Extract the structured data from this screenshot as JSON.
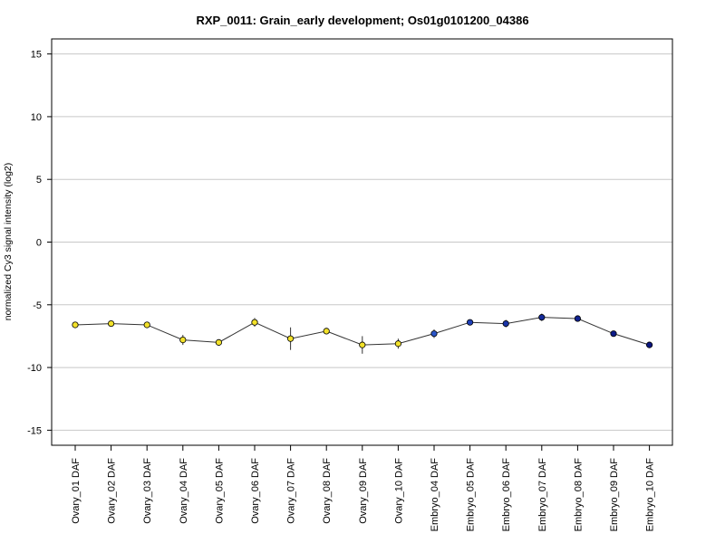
{
  "chart_data": {
    "type": "line",
    "title": "RXP_0011: Grain_early development; Os01g0101200_04386",
    "xlabel": "",
    "ylabel": "normalized Cy3 signal intensity (log2)",
    "ylim": [
      -16.2,
      16.2
    ],
    "yticks": [
      15,
      10,
      5,
      0,
      -5,
      -10,
      -15
    ],
    "grid": true,
    "legend": "none",
    "categories": [
      "Ovary_01 DAF",
      "Ovary_02 DAF",
      "Ovary_03 DAF",
      "Ovary_04 DAF",
      "Ovary_05 DAF",
      "Ovary_06 DAF",
      "Ovary_07 DAF",
      "Ovary_08 DAF",
      "Ovary_09 DAF",
      "Ovary_10 DAF",
      "Embryo_04 DAF",
      "Embryo_05 DAF",
      "Embryo_06 DAF",
      "Embryo_07 DAF",
      "Embryo_08 DAF",
      "Embryo_09 DAF",
      "Embryo_10 DAF"
    ],
    "values": [
      -6.6,
      -6.5,
      -6.6,
      -7.8,
      -8.0,
      -6.4,
      -7.7,
      -7.1,
      -8.2,
      -8.1,
      -7.3,
      -6.4,
      -6.5,
      -6.0,
      -6.1,
      -7.3,
      -8.2
    ],
    "error": [
      0.15,
      0.1,
      0.15,
      0.4,
      0.2,
      0.35,
      0.9,
      0.25,
      0.7,
      0.4,
      0.35,
      0.2,
      0.3,
      0.3,
      0.15,
      0.15,
      0.15
    ],
    "point_colors": [
      "#f2e12a",
      "#f2e12a",
      "#f2e12a",
      "#f2e12a",
      "#f2e12a",
      "#f2e12a",
      "#f2e12a",
      "#f2e12a",
      "#f2e12a",
      "#f2e12a",
      "#2a55c8",
      "#1e3fb8",
      "#1a34a8",
      "#142a9a",
      "#112390",
      "#0d1c88",
      "#0a1680"
    ],
    "line_color": "#333333",
    "grid_color": "#c8c8c8"
  }
}
